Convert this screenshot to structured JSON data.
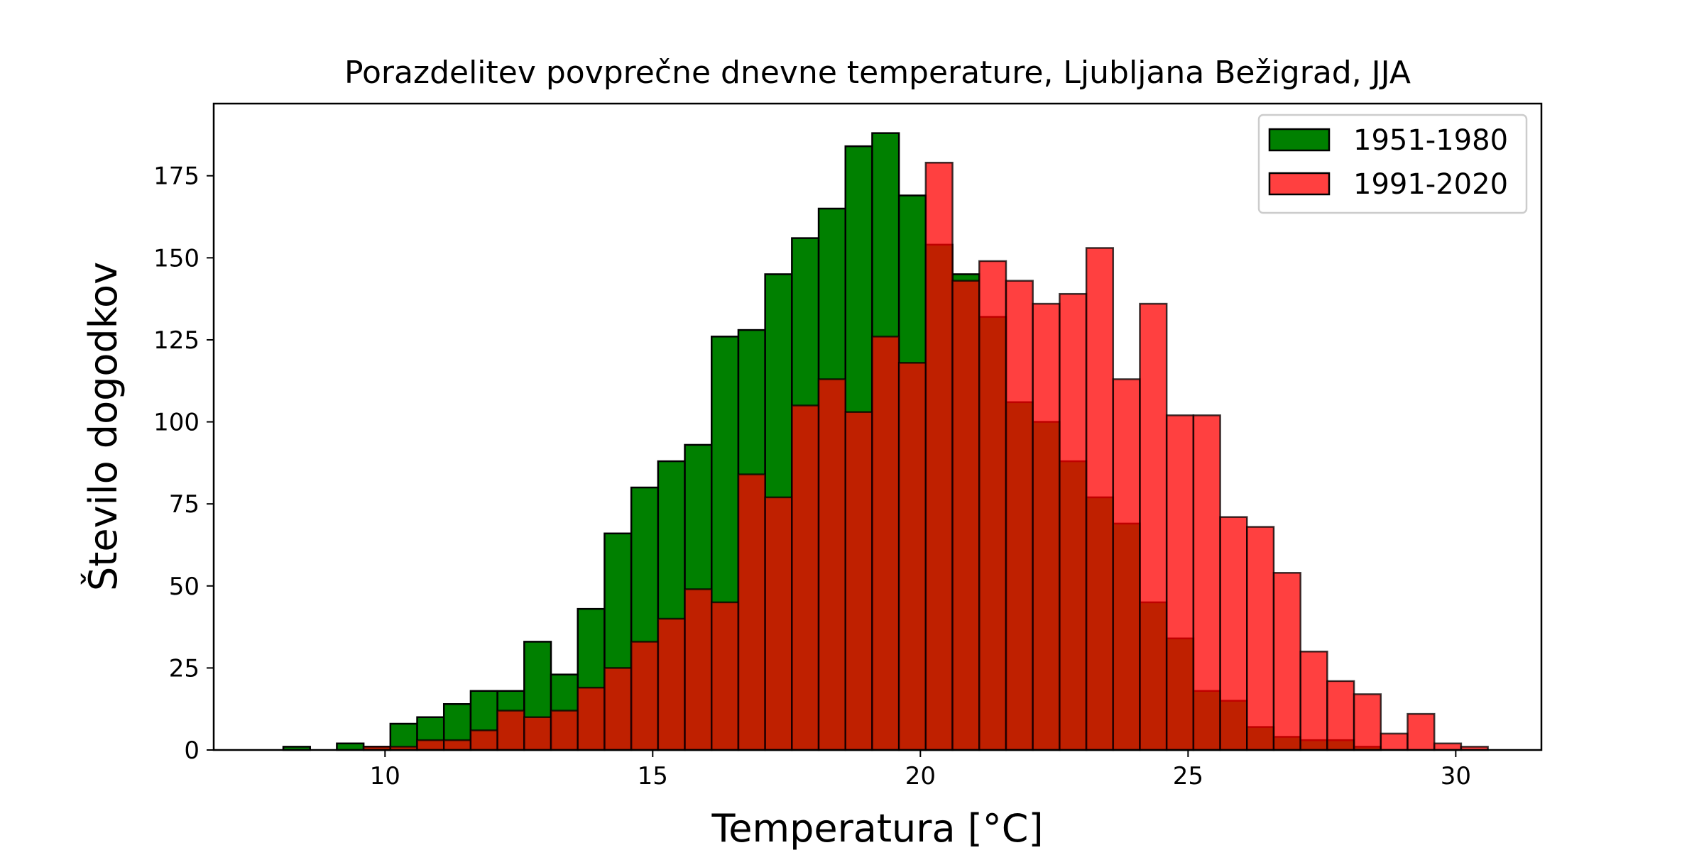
{
  "chart_data": {
    "type": "bar",
    "title": "Porazdelitev povprečne dnevne temperature, Ljubljana Bežigrad, JJA",
    "xlabel": "Temperatura [°C]",
    "ylabel": "Število dogodkov",
    "xlim": [
      6.8,
      31.6
    ],
    "ylim": [
      0,
      197
    ],
    "xticks": [
      10,
      15,
      20,
      25,
      30
    ],
    "yticks": [
      0,
      25,
      50,
      75,
      100,
      125,
      150,
      175
    ],
    "legend_position": "top-right",
    "grid": false,
    "series": [
      {
        "name": "1951-1980",
        "color": "#008000",
        "opacity": 1.0,
        "bins": [
          [
            8.1,
            8.6,
            1
          ],
          [
            8.6,
            9.1,
            0
          ],
          [
            9.1,
            9.6,
            2
          ],
          [
            9.6,
            10.1,
            1
          ],
          [
            10.1,
            10.6,
            8
          ],
          [
            10.6,
            11.1,
            10
          ],
          [
            11.1,
            11.6,
            14
          ],
          [
            11.6,
            12.1,
            18
          ],
          [
            12.1,
            12.6,
            18
          ],
          [
            12.6,
            13.1,
            33
          ],
          [
            13.1,
            13.6,
            23
          ],
          [
            13.6,
            14.1,
            43
          ],
          [
            14.1,
            14.6,
            66
          ],
          [
            14.6,
            15.1,
            80
          ],
          [
            15.1,
            15.6,
            88
          ],
          [
            15.6,
            16.1,
            93
          ],
          [
            16.1,
            16.6,
            126
          ],
          [
            16.6,
            17.1,
            128
          ],
          [
            17.1,
            17.6,
            145
          ],
          [
            17.6,
            18.1,
            156
          ],
          [
            18.1,
            18.6,
            165
          ],
          [
            18.6,
            19.1,
            184
          ],
          [
            19.1,
            19.6,
            188
          ],
          [
            19.6,
            20.1,
            169
          ],
          [
            20.1,
            20.6,
            154
          ],
          [
            20.6,
            21.1,
            145
          ],
          [
            21.1,
            21.6,
            132
          ],
          [
            21.6,
            22.1,
            106
          ],
          [
            22.1,
            22.6,
            100
          ],
          [
            22.6,
            23.1,
            88
          ],
          [
            23.1,
            23.6,
            77
          ],
          [
            23.6,
            24.1,
            69
          ],
          [
            24.1,
            24.6,
            45
          ],
          [
            24.6,
            25.1,
            34
          ],
          [
            25.1,
            25.6,
            18
          ],
          [
            25.6,
            26.1,
            15
          ],
          [
            26.1,
            26.6,
            7
          ],
          [
            26.6,
            27.1,
            4
          ],
          [
            27.1,
            27.6,
            3
          ],
          [
            27.6,
            28.1,
            3
          ],
          [
            28.1,
            28.6,
            1
          ]
        ]
      },
      {
        "name": "1991-2020",
        "color": "#ff0000",
        "opacity": 0.75,
        "bins": [
          [
            9.6,
            10.1,
            1
          ],
          [
            10.1,
            10.6,
            1
          ],
          [
            10.6,
            11.1,
            3
          ],
          [
            11.1,
            11.6,
            3
          ],
          [
            11.6,
            12.1,
            6
          ],
          [
            12.1,
            12.6,
            12
          ],
          [
            12.6,
            13.1,
            10
          ],
          [
            13.1,
            13.6,
            12
          ],
          [
            13.6,
            14.1,
            19
          ],
          [
            14.1,
            14.6,
            25
          ],
          [
            14.6,
            15.1,
            33
          ],
          [
            15.1,
            15.6,
            40
          ],
          [
            15.6,
            16.1,
            49
          ],
          [
            16.1,
            16.6,
            45
          ],
          [
            16.6,
            17.1,
            84
          ],
          [
            17.1,
            17.6,
            77
          ],
          [
            17.6,
            18.1,
            105
          ],
          [
            18.1,
            18.6,
            113
          ],
          [
            18.6,
            19.1,
            103
          ],
          [
            19.1,
            19.6,
            126
          ],
          [
            19.6,
            20.1,
            118
          ],
          [
            20.1,
            20.6,
            179
          ],
          [
            20.6,
            21.1,
            143
          ],
          [
            21.1,
            21.6,
            149
          ],
          [
            21.6,
            22.1,
            143
          ],
          [
            22.1,
            22.6,
            136
          ],
          [
            22.6,
            23.1,
            139
          ],
          [
            23.1,
            23.6,
            153
          ],
          [
            23.6,
            24.1,
            113
          ],
          [
            24.1,
            24.6,
            136
          ],
          [
            24.6,
            25.1,
            102
          ],
          [
            25.1,
            25.6,
            102
          ],
          [
            25.6,
            26.1,
            71
          ],
          [
            26.1,
            26.6,
            68
          ],
          [
            26.6,
            27.1,
            54
          ],
          [
            27.1,
            27.6,
            30
          ],
          [
            27.6,
            28.1,
            21
          ],
          [
            28.1,
            28.6,
            17
          ],
          [
            28.6,
            29.1,
            5
          ],
          [
            29.1,
            29.6,
            11
          ],
          [
            29.6,
            30.1,
            2
          ],
          [
            30.1,
            30.6,
            1
          ]
        ]
      }
    ]
  }
}
